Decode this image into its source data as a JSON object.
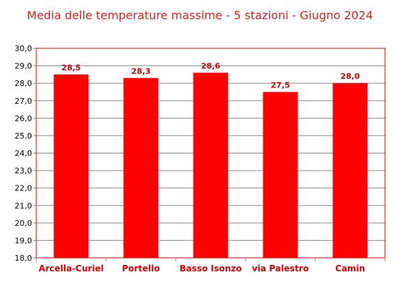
{
  "chart_data": {
    "type": "bar",
    "title": "Media delle temperature massime - 5 stazioni - Giugno 2024",
    "categories": [
      "Arcella-Curiel",
      "Portello",
      "Basso Isonzo",
      "via Palestro",
      "Camin"
    ],
    "values": [
      28.5,
      28.3,
      28.6,
      27.5,
      28.0
    ],
    "data_labels": [
      "28,5",
      "28,3",
      "28,6",
      "27,5",
      "28,0"
    ],
    "ylim": [
      18.0,
      30.0
    ],
    "yticks": [
      "18,0",
      "19,0",
      "20,0",
      "21,0",
      "22,0",
      "23,0",
      "24,0",
      "25,0",
      "26,0",
      "27,0",
      "28,0",
      "29,0",
      "30,0"
    ],
    "xlabel": "",
    "ylabel": "",
    "grid": true,
    "legend": "none",
    "bar_color": "#ff0000",
    "plot_border_color": "#dd0000",
    "text_color": "#dd0000"
  }
}
